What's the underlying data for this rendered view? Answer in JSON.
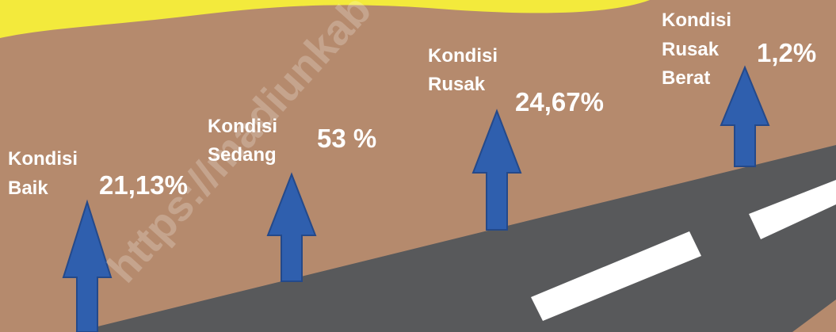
{
  "watermark": "https://madiunkab",
  "items": [
    {
      "label_lines": [
        "Kondisi",
        "Baik"
      ],
      "value": "21,13%"
    },
    {
      "label_lines": [
        "Kondisi",
        "Sedang"
      ],
      "value": "53 %"
    },
    {
      "label_lines": [
        "Kondisi",
        "Rusak"
      ],
      "value": "24,67%"
    },
    {
      "label_lines": [
        "Kondisi",
        "Rusak",
        "Berat"
      ],
      "value": "1,2%"
    }
  ]
}
